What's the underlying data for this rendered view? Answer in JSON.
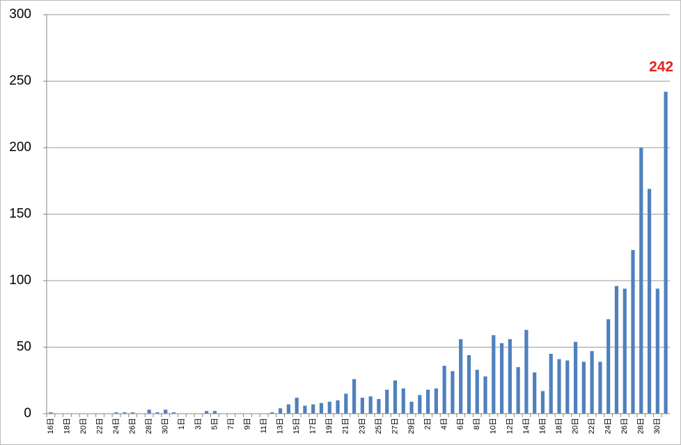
{
  "chart_data": {
    "type": "bar",
    "categories": [
      "16日",
      null,
      "18日",
      null,
      "20日",
      null,
      "22日",
      null,
      "24日",
      null,
      "26日",
      null,
      "28日",
      null,
      "30日",
      null,
      "1日",
      null,
      "3日",
      null,
      "5日",
      null,
      "7日",
      null,
      "9日",
      null,
      "11日",
      null,
      "13日",
      null,
      "15日",
      null,
      "17日",
      null,
      "19日",
      null,
      "21日",
      null,
      "23日",
      null,
      "25日",
      null,
      "27日",
      null,
      "29日",
      null,
      "2日",
      null,
      "4日",
      null,
      "6日",
      null,
      "8日",
      null,
      "10日",
      null,
      "12日",
      null,
      "14日",
      null,
      "16日",
      null,
      "18日",
      null,
      "20日",
      null,
      "22日",
      null,
      "24日",
      null,
      "26日",
      null,
      "28日",
      null,
      "30日",
      null
    ],
    "values": [
      1,
      0,
      0,
      0,
      0,
      0,
      0,
      0,
      1,
      1,
      1,
      0,
      3,
      1,
      3,
      1,
      0,
      0,
      0,
      2,
      2,
      0,
      0,
      0,
      0,
      0,
      0,
      1,
      4,
      7,
      12,
      6,
      7,
      8,
      9,
      10,
      15,
      26,
      12,
      13,
      11,
      18,
      25,
      19,
      9,
      14,
      18,
      19,
      36,
      32,
      56,
      44,
      33,
      28,
      59,
      53,
      56,
      35,
      63,
      31,
      17,
      45,
      41,
      40,
      54,
      39,
      47,
      39,
      71,
      96,
      94,
      123,
      200,
      169,
      94,
      242
    ],
    "color": "#4f81bd",
    "ylim": [
      0,
      300
    ],
    "yticks": [
      0,
      50,
      100,
      150,
      200,
      250,
      300
    ],
    "grid": true,
    "annotations": [
      {
        "text": "242",
        "color": "#e8201c"
      }
    ]
  }
}
